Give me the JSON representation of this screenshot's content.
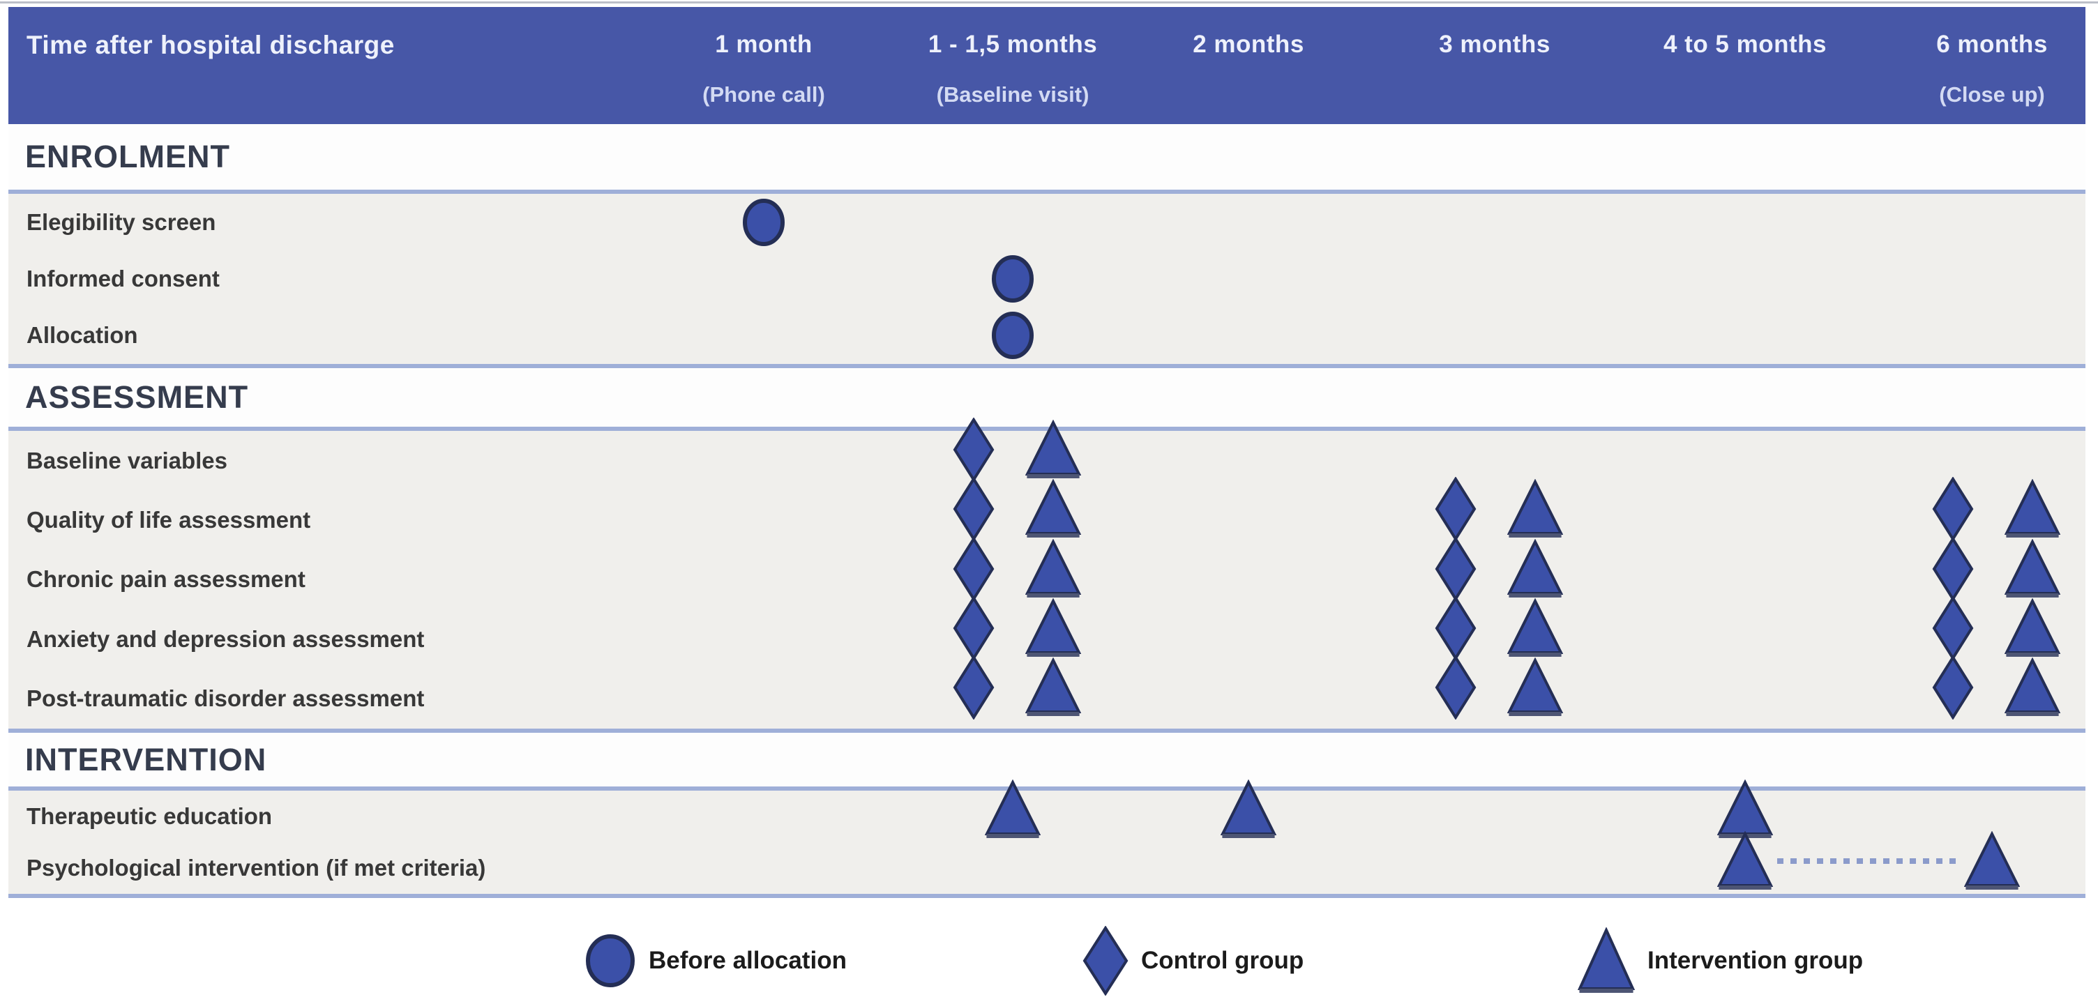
{
  "figure": {
    "header": {
      "title": "Time after hospital discharge",
      "columns": [
        {
          "label": "1 month",
          "sublabel": "(Phone call)"
        },
        {
          "label": "1 - 1,5 months",
          "sublabel": "(Baseline visit)"
        },
        {
          "label": "2 months",
          "sublabel": ""
        },
        {
          "label": "3 months",
          "sublabel": ""
        },
        {
          "label": "4 to 5 months",
          "sublabel": ""
        },
        {
          "label": "6 months",
          "sublabel": "(Close up)"
        }
      ]
    },
    "sections": [
      {
        "heading": "ENROLMENT",
        "rows": [
          {
            "label": "Elegibility screen",
            "marks": [
              {
                "col": 0,
                "symbols": [
                  "circle"
                ]
              }
            ]
          },
          {
            "label": "Informed consent",
            "marks": [
              {
                "col": 1,
                "symbols": [
                  "circle"
                ]
              }
            ]
          },
          {
            "label": "Allocation",
            "marks": [
              {
                "col": 1,
                "symbols": [
                  "circle"
                ]
              }
            ]
          }
        ]
      },
      {
        "heading": "ASSESSMENT",
        "rows": [
          {
            "label": "Baseline variables",
            "marks": [
              {
                "col": 1,
                "symbols": [
                  "diamond",
                  "triangle"
                ]
              }
            ]
          },
          {
            "label": "Quality of life assessment",
            "marks": [
              {
                "col": 1,
                "symbols": [
                  "diamond",
                  "triangle"
                ]
              },
              {
                "col": 3,
                "symbols": [
                  "diamond",
                  "triangle"
                ]
              },
              {
                "col": 5,
                "symbols": [
                  "diamond",
                  "triangle"
                ]
              }
            ]
          },
          {
            "label": "Chronic pain assessment",
            "marks": [
              {
                "col": 1,
                "symbols": [
                  "diamond",
                  "triangle"
                ]
              },
              {
                "col": 3,
                "symbols": [
                  "diamond",
                  "triangle"
                ]
              },
              {
                "col": 5,
                "symbols": [
                  "diamond",
                  "triangle"
                ]
              }
            ]
          },
          {
            "label": "Anxiety and depression assessment",
            "marks": [
              {
                "col": 1,
                "symbols": [
                  "diamond",
                  "triangle"
                ]
              },
              {
                "col": 3,
                "symbols": [
                  "diamond",
                  "triangle"
                ]
              },
              {
                "col": 5,
                "symbols": [
                  "diamond",
                  "triangle"
                ]
              }
            ]
          },
          {
            "label": "Post-traumatic disorder assessment",
            "marks": [
              {
                "col": 1,
                "symbols": [
                  "diamond",
                  "triangle"
                ]
              },
              {
                "col": 3,
                "symbols": [
                  "diamond",
                  "triangle"
                ]
              },
              {
                "col": 5,
                "symbols": [
                  "diamond",
                  "triangle"
                ]
              }
            ]
          }
        ]
      },
      {
        "heading": "INTERVENTION",
        "rows": [
          {
            "label": "Therapeutic education",
            "marks": [
              {
                "col": 1,
                "symbols": [
                  "triangle"
                ]
              },
              {
                "col": 2,
                "symbols": [
                  "triangle"
                ]
              },
              {
                "col": 4,
                "symbols": [
                  "triangle"
                ]
              }
            ]
          },
          {
            "label": "Psychological intervention (if met criteria)",
            "marks": [
              {
                "col": 4,
                "symbols": [
                  "triangle"
                ]
              },
              {
                "col": 5,
                "symbols": [
                  "triangle"
                ]
              }
            ],
            "connector": {
              "from_col": 4,
              "to_col": 5,
              "style": "dashed"
            }
          }
        ]
      }
    ],
    "legend": [
      {
        "symbol": "circle",
        "label": "Before allocation"
      },
      {
        "symbol": "diamond",
        "label": "Control group"
      },
      {
        "symbol": "triangle",
        "label": "Intervention group"
      }
    ],
    "colors": {
      "header_bg": "#4757a7",
      "symbol_fill": "#3b50a8",
      "symbol_edge": "#242e55",
      "divider": "#9fafd8",
      "band_bg": "#f0efec",
      "heading_text": "#353c4d"
    }
  }
}
